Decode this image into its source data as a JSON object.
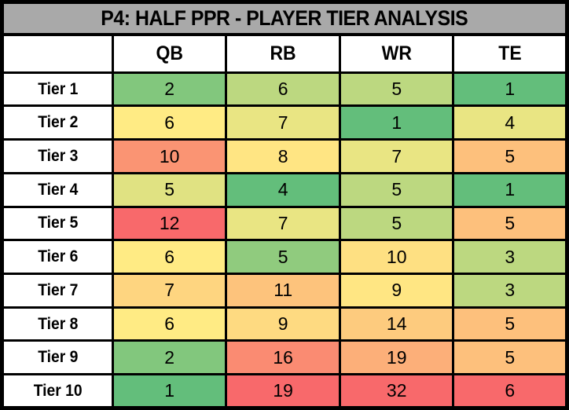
{
  "chart_data": {
    "type": "heatmap",
    "title": "P4: HALF PPR - PLAYER TIER ANALYSIS",
    "columns": [
      "QB",
      "RB",
      "WR",
      "TE"
    ],
    "row_labels": [
      "Tier 1",
      "Tier 2",
      "Tier 3",
      "Tier 4",
      "Tier 5",
      "Tier 6",
      "Tier 7",
      "Tier 8",
      "Tier 9",
      "Tier 10"
    ],
    "values": [
      [
        2,
        6,
        5,
        1
      ],
      [
        6,
        7,
        1,
        4
      ],
      [
        10,
        8,
        7,
        5
      ],
      [
        5,
        4,
        5,
        1
      ],
      [
        12,
        7,
        5,
        5
      ],
      [
        6,
        5,
        10,
        3
      ],
      [
        7,
        11,
        9,
        3
      ],
      [
        6,
        9,
        14,
        5
      ],
      [
        2,
        16,
        19,
        5
      ],
      [
        1,
        19,
        32,
        6
      ]
    ],
    "cell_colors": [
      [
        "#82C77D",
        "#BCD880",
        "#BCD880",
        "#63BE7B"
      ],
      [
        "#FFEB84",
        "#E9E583",
        "#63BE7B",
        "#E9E583"
      ],
      [
        "#FA9473",
        "#FFE583",
        "#E9E583",
        "#FDC07C"
      ],
      [
        "#E0E282",
        "#63BE7B",
        "#BCD880",
        "#63BE7B"
      ],
      [
        "#F8696B",
        "#E9E583",
        "#BCD880",
        "#FDC07C"
      ],
      [
        "#FFEB84",
        "#90CB7E",
        "#FEE082",
        "#BCD880"
      ],
      [
        "#FED580",
        "#FDC37C",
        "#FFE683",
        "#BCD880"
      ],
      [
        "#FFEB84",
        "#FEDA81",
        "#FDCB7E",
        "#FDC07C"
      ],
      [
        "#82C77D",
        "#FA8B72",
        "#FCAF79",
        "#FDC07C"
      ],
      [
        "#63BE7B",
        "#F8696B",
        "#F8696B",
        "#F8696B"
      ]
    ],
    "color_scale": {
      "low": "#63BE7B",
      "mid": "#FFEB84",
      "high": "#F8696B",
      "applied": "per-column, low value = green, high value = red"
    },
    "style_colors": {
      "title_bg": "#A9A9A9",
      "grid": "#000000",
      "header_bg": "#FFFFFF",
      "text": "#000000"
    }
  }
}
